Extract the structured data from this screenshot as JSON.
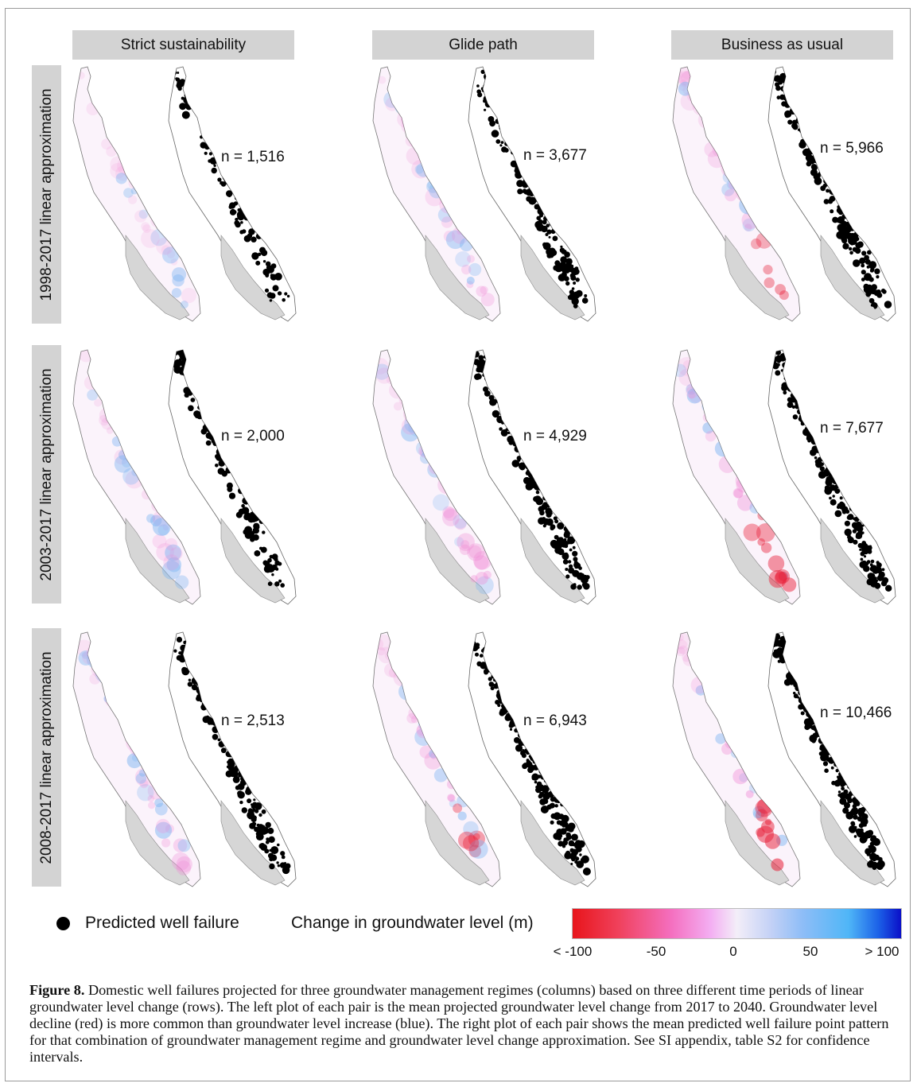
{
  "columns": [
    "Strict sustainability",
    "Glide path",
    "Business as usual"
  ],
  "rows": [
    "1998-2017 linear approximation",
    "2003-2017 linear approximation",
    "2008-2017 linear approximation"
  ],
  "counts": [
    [
      "n = 1,516",
      "n = 3,677",
      "n = 5,966"
    ],
    [
      "n = 2,000",
      "n = 4,929",
      "n = 7,677"
    ],
    [
      "n = 2,513",
      "n = 6,943",
      "n = 10,466"
    ]
  ],
  "legend": {
    "well_failure_label": "Predicted well failure",
    "colorbar_title": "Change in groundwater level (m)",
    "ticks": [
      "< -100",
      "-50",
      "0",
      "50",
      "> 100"
    ],
    "colors": {
      "decline": "#e8151b",
      "neutral": "#f3eef8",
      "increase": "#0a0fc8"
    }
  },
  "caption": {
    "label": "Figure 8.",
    "text": "Domestic well failures projected for three groundwater management regimes (columns) based on three different time periods of linear groundwater level change (rows). The left plot of each pair is the mean projected groundwater level change from 2017 to 2040. Groundwater level decline (red) is more common than groundwater level increase (blue). The right plot of each pair shows the mean predicted well failure point pattern for that combination of groundwater management regime and groundwater level change approximation. See SI appendix, table S2 for confidence intervals."
  }
}
